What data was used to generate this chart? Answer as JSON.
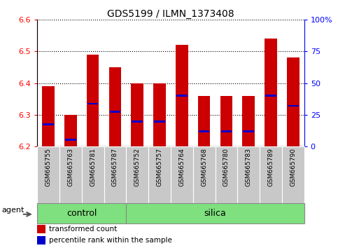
{
  "title": "GDS5199 / ILMN_1373408",
  "samples": [
    "GSM665755",
    "GSM665763",
    "GSM665781",
    "GSM665787",
    "GSM665752",
    "GSM665757",
    "GSM665764",
    "GSM665768",
    "GSM665780",
    "GSM665783",
    "GSM665789",
    "GSM665790"
  ],
  "groups": [
    "control",
    "control",
    "control",
    "control",
    "silica",
    "silica",
    "silica",
    "silica",
    "silica",
    "silica",
    "silica",
    "silica"
  ],
  "bar_tops": [
    6.39,
    6.3,
    6.49,
    6.45,
    6.4,
    6.4,
    6.52,
    6.36,
    6.36,
    6.36,
    6.54,
    6.48
  ],
  "blue_markers": [
    6.27,
    6.22,
    6.335,
    6.31,
    6.278,
    6.278,
    6.36,
    6.248,
    6.248,
    6.248,
    6.36,
    6.328
  ],
  "baseline": 6.2,
  "ylim_left": [
    6.2,
    6.6
  ],
  "ylim_right": [
    0,
    100
  ],
  "yticks_left": [
    6.2,
    6.3,
    6.4,
    6.5,
    6.6
  ],
  "yticks_right": [
    0,
    25,
    50,
    75,
    100
  ],
  "ytick_labels_right": [
    "0",
    "25",
    "50",
    "75",
    "100%"
  ],
  "bar_color": "#CC0000",
  "blue_color": "#0000CC",
  "group_color": "#7EE07E",
  "tick_bg_color": "#C8C8C8",
  "agent_label": "agent",
  "control_label": "control",
  "silica_label": "silica",
  "legend_red": "transformed count",
  "legend_blue": "percentile rank within the sample",
  "bar_width": 0.55,
  "n_control": 4,
  "n_total": 12
}
